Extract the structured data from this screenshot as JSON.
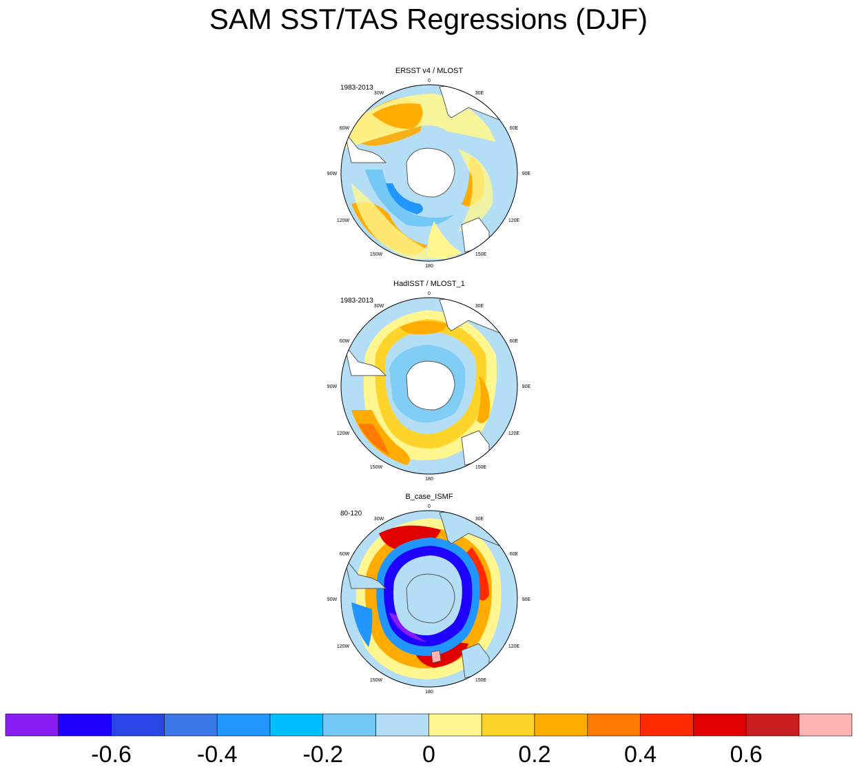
{
  "title": "SAM SST/TAS Regressions (DJF)",
  "panels": [
    {
      "title": "ERSST v4 / MLOST",
      "period": "1983-2013"
    },
    {
      "title": "HadISST / MLOST_1",
      "period": "1983-2013"
    },
    {
      "title": "B_case_ISMF",
      "period": "80-120"
    }
  ],
  "longitude_labels": [
    "0",
    "30E",
    "60E",
    "90E",
    "120E",
    "150E",
    "180",
    "150W",
    "120W",
    "90W",
    "60W",
    "30W"
  ],
  "colorbar": {
    "colors": [
      "#8a1cf5",
      "#1e00ff",
      "#2b46e6",
      "#3a78e8",
      "#2196ff",
      "#00bfff",
      "#73c8f5",
      "#b3def5",
      "#fff68f",
      "#ffd42a",
      "#ffab00",
      "#ff7a00",
      "#ff2a00",
      "#e00000",
      "#c81e1e",
      "#ffb3b3"
    ],
    "tick_labels": [
      "-0.6",
      "-0.4",
      "-0.2",
      "0",
      "0.2",
      "0.4",
      "0.6"
    ]
  },
  "colors": {
    "land": "#ffffff",
    "coast": "#555555"
  }
}
